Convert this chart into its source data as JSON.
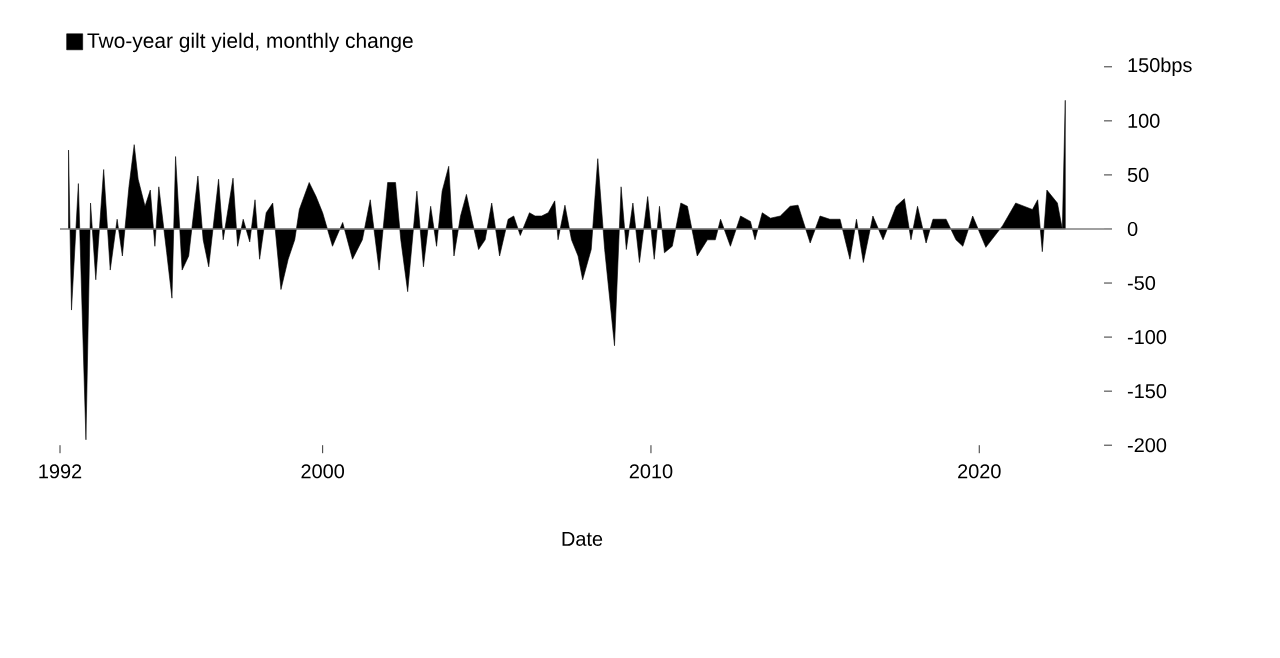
{
  "chart_data": {
    "type": "area",
    "xlabel": "Date",
    "legend": "top left",
    "x": [
      1992.26,
      1992.35,
      1992.56,
      1992.79,
      1992.93,
      1993.09,
      1993.33,
      1993.53,
      1993.74,
      1993.9,
      1994.1,
      1994.26,
      1994.38,
      1994.59,
      1994.75,
      1994.89,
      1995.01,
      1995.25,
      1995.41,
      1995.52,
      1995.72,
      1995.92,
      1996.2,
      1996.36,
      1996.53,
      1996.83,
      1996.97,
      1997.27,
      1997.41,
      1997.58,
      1997.78,
      1997.94,
      1998.08,
      1998.28,
      1998.48,
      1998.73,
      1998.95,
      1999.15,
      1999.29,
      1999.59,
      1999.8,
      2000.0,
      2000.3,
      2000.61,
      2000.91,
      2001.21,
      2001.45,
      2001.72,
      2001.98,
      2002.22,
      2002.38,
      2002.59,
      2002.87,
      2003.07,
      2003.29,
      2003.47,
      2003.64,
      2003.84,
      2004.0,
      2004.2,
      2004.38,
      2004.55,
      2004.75,
      2004.95,
      2005.15,
      2005.39,
      2005.65,
      2005.82,
      2006.02,
      2006.3,
      2006.47,
      2006.67,
      2006.87,
      2007.07,
      2007.17,
      2007.38,
      2007.58,
      2007.78,
      2007.92,
      2008.18,
      2008.38,
      2008.59,
      2008.89,
      2009.09,
      2009.25,
      2009.45,
      2009.65,
      2009.9,
      2010.1,
      2010.26,
      2010.41,
      2010.65,
      2010.91,
      2011.11,
      2011.41,
      2011.72,
      2011.96,
      2012.12,
      2012.42,
      2012.73,
      2013.03,
      2013.17,
      2013.39,
      2013.64,
      2013.94,
      2014.24,
      2014.48,
      2014.85,
      2015.15,
      2015.45,
      2015.76,
      2016.06,
      2016.26,
      2016.47,
      2016.76,
      2017.07,
      2017.47,
      2017.72,
      2017.92,
      2018.12,
      2018.38,
      2018.59,
      2018.99,
      2019.29,
      2019.5,
      2019.8,
      2020.2,
      2020.71,
      2021.11,
      2021.62,
      2021.78,
      2021.92,
      2022.06,
      2022.22,
      2022.38,
      2022.53,
      2022.62
    ],
    "series": [
      {
        "name": "Two-year gilt yield, monthly change",
        "color": "#000000",
        "values": [
          73,
          -75,
          42,
          -195,
          24,
          -47,
          55,
          -38,
          9,
          -25,
          39,
          78,
          46,
          21,
          36,
          -16,
          39,
          -22,
          -64,
          67,
          -38,
          -25,
          49,
          -10,
          -35,
          46,
          -10,
          47,
          -16,
          9,
          -12,
          27,
          -28,
          15,
          24,
          -56,
          -28,
          -10,
          18,
          43,
          30,
          15,
          -16,
          6,
          -28,
          -10,
          27,
          -38,
          43,
          43,
          -10,
          -58,
          35,
          -35,
          21,
          -16,
          35,
          58,
          -25,
          12,
          32,
          8,
          -19,
          -10,
          24,
          -25,
          9,
          12,
          -6,
          15,
          12,
          12,
          15,
          26,
          -10,
          22,
          -10,
          -25,
          -47,
          -19,
          65,
          -19,
          -108,
          39,
          -19,
          24,
          -31,
          30,
          -28,
          21,
          -22,
          -16,
          24,
          21,
          -25,
          -10,
          -10,
          9,
          -16,
          12,
          7,
          -10,
          15,
          10,
          12,
          21,
          22,
          -13,
          12,
          9,
          9,
          -28,
          9,
          -31,
          12,
          -10,
          21,
          28,
          -10,
          21,
          -13,
          9,
          9,
          -10,
          -16,
          12,
          -17,
          3,
          24,
          18,
          27,
          -21,
          36,
          30,
          24,
          0,
          119
        ]
      }
    ],
    "xlim": [
      1992,
      2023.8
    ],
    "xticks": [
      1992,
      2000,
      2010,
      2020
    ],
    "ylim": [
      -200,
      150
    ],
    "yticks": [
      -200,
      -150,
      -100,
      -50,
      0,
      50,
      100,
      {
        "value": 150,
        "label": "150bps"
      }
    ],
    "ref_lines": [
      {
        "axis": "y",
        "value": 0,
        "color": "#808080"
      }
    ]
  }
}
